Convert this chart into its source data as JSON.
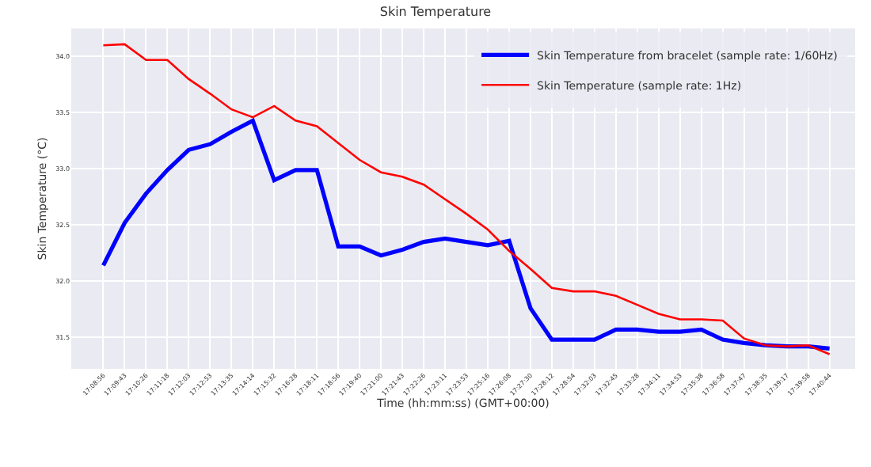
{
  "chart_data": {
    "type": "line",
    "title": "Skin Temperature",
    "xlabel": "Time (hh:mm:ss) (GMT+00:00)",
    "ylabel": "Skin Temperature (°C)",
    "categories": [
      "17:08:56",
      "17:09:43",
      "17:10:26",
      "17:11:18",
      "17:12:03",
      "17:12:53",
      "17:13:35",
      "17:14:14",
      "17:15:32",
      "17:16:28",
      "17:18:11",
      "17:18:56",
      "17:19:40",
      "17:21:00",
      "17:21:43",
      "17:22:26",
      "17:23:11",
      "17:23:53",
      "17:25:16",
      "17:26:08",
      "17:27:30",
      "17:28:12",
      "17:28:54",
      "17:32:03",
      "17:32:45",
      "17:33:28",
      "17:34:11",
      "17:34:53",
      "17:35:38",
      "17:36:58",
      "17:37:47",
      "17:38:35",
      "17:39:17",
      "17:39:58",
      "17:40:44"
    ],
    "series": [
      {
        "name": "Skin Temperature from bracelet (sample rate: 1/60Hz)",
        "color": "#0000ff",
        "values": [
          32.14,
          32.52,
          32.78,
          32.99,
          33.17,
          33.22,
          33.33,
          33.43,
          32.9,
          32.99,
          32.99,
          32.31,
          32.31,
          32.23,
          32.28,
          32.35,
          32.38,
          32.35,
          32.32,
          32.36,
          31.76,
          31.48,
          31.48,
          31.48,
          31.57,
          31.57,
          31.55,
          31.55,
          31.57,
          31.48,
          31.45,
          31.43,
          31.42,
          31.42,
          31.4
        ]
      },
      {
        "name": "Skin Temperature (sample rate: 1Hz)",
        "color": "#ff0000",
        "values": [
          34.1,
          34.11,
          33.97,
          33.97,
          33.8,
          33.67,
          33.53,
          33.46,
          33.56,
          33.43,
          33.38,
          33.23,
          33.08,
          32.97,
          32.93,
          32.86,
          32.73,
          32.6,
          32.46,
          32.27,
          32.11,
          31.94,
          31.91,
          31.91,
          31.87,
          31.79,
          31.71,
          31.66,
          31.66,
          31.65,
          31.49,
          31.43,
          31.42,
          31.43,
          31.35
        ]
      }
    ],
    "ylim": [
      31.22,
      34.25
    ],
    "yticks": [
      31.5,
      {
        "value": 32,
        "label": "32.0"
      },
      32.5,
      {
        "value": 33,
        "label": "33.0"
      },
      33.5,
      {
        "value": 34,
        "label": "34.0"
      }
    ],
    "grid": true,
    "legend": "top right",
    "marker": "none",
    "line_style": "solid"
  }
}
